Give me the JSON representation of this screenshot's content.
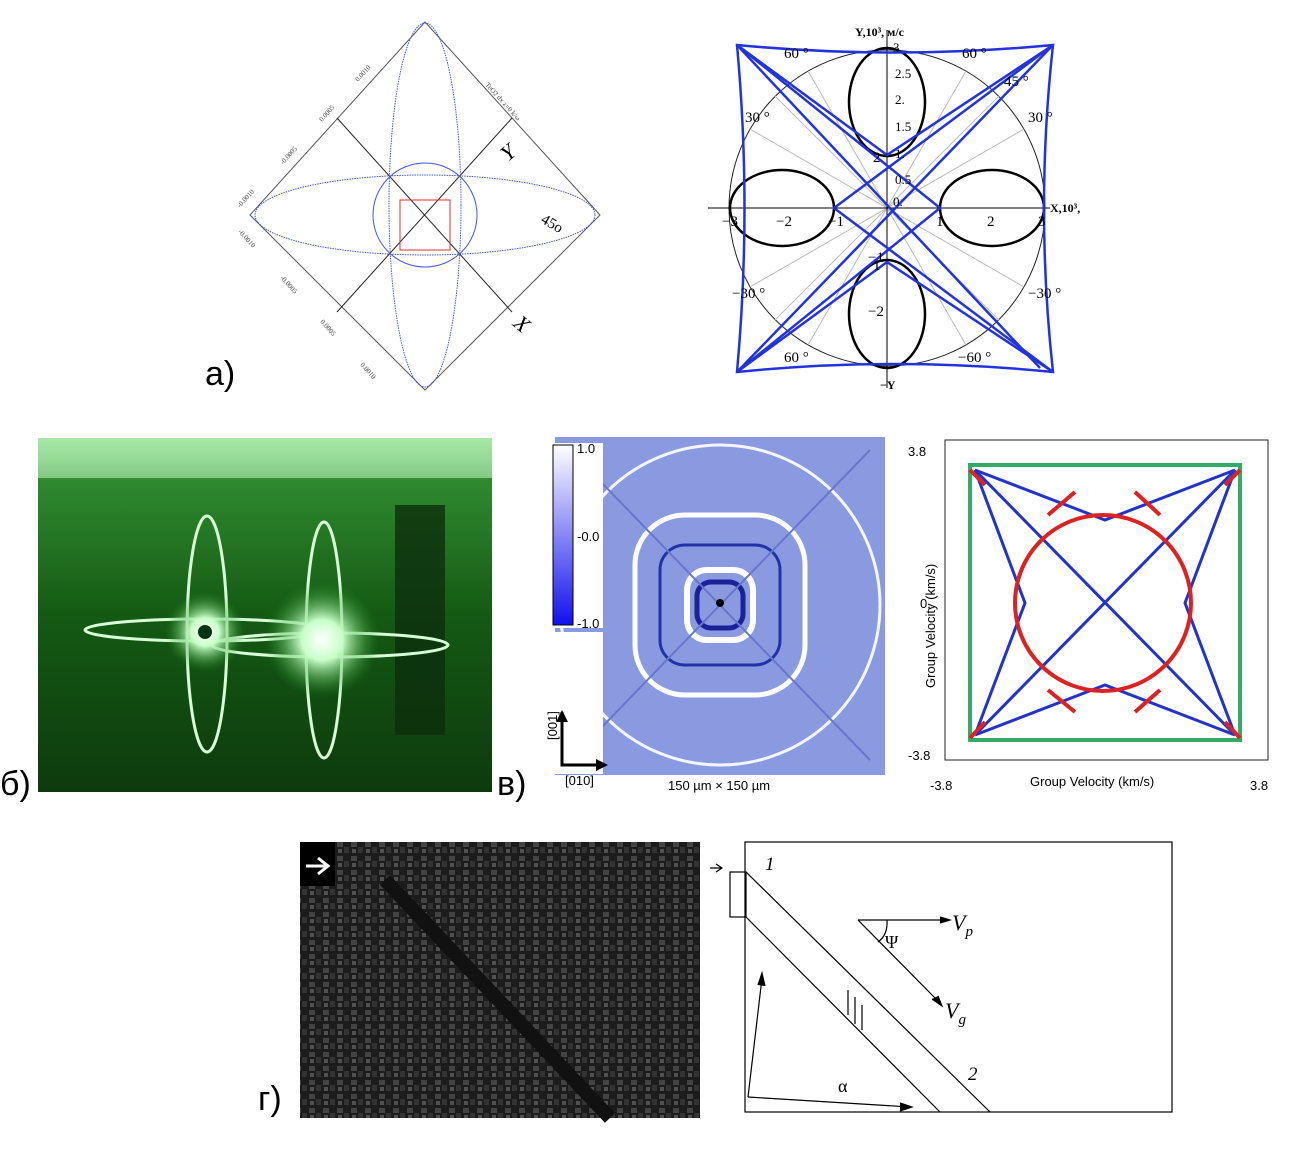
{
  "panels": {
    "a": {
      "label": "а)",
      "left": {
        "caption": "TeO2 dx z=0 k/ω",
        "axis_y": "Y",
        "axis_x": "X",
        "angle": "45o",
        "ticks_top": [
          "0.0010",
          "0.0005",
          "-0.0005",
          "-0.0010"
        ],
        "ticks_bottom": [
          "-0.0010",
          "-0.0005",
          "0.0005",
          "0.0010"
        ]
      },
      "right": {
        "y_label": "Y,10³, м/с",
        "x_label": "X,10³,",
        "neg_y": "−Y",
        "x_ticks": [
          "−3",
          "−2",
          "−1",
          "1",
          "2",
          "3"
        ],
        "y_ticks": [
          "2",
          "1",
          "−1",
          "−2"
        ],
        "radial_ticks": [
          "3",
          "2.5",
          "2.",
          "1.5",
          "1.",
          "0.5",
          "0."
        ],
        "angles": [
          "60 °",
          "60 °",
          "45 °",
          "30 °",
          "30 °",
          "−30 °",
          "−30 °",
          "60 °",
          "−60 °"
        ]
      }
    },
    "b": {
      "label": "б)"
    },
    "v": {
      "label": "в)",
      "colorbar": [
        "1.0",
        "-0.0",
        "-1.0"
      ],
      "axes": [
        "[001]",
        "[010]"
      ],
      "scale": "150 µm × 150 µm",
      "plot": {
        "y_ticks": [
          "3.8",
          "0.",
          "-3.8"
        ],
        "x_ticks": [
          "-3.8",
          "3.8"
        ],
        "x_label": "Group Velocity (km/s)",
        "y_label": "Group Velocity (km/s)"
      }
    },
    "g": {
      "label": "г)",
      "marks": [
        "1",
        "2"
      ],
      "vp": "V",
      "vp_sub": "p",
      "vg": "V",
      "vg_sub": "g",
      "psi": "Ψ",
      "alpha": "α"
    }
  }
}
